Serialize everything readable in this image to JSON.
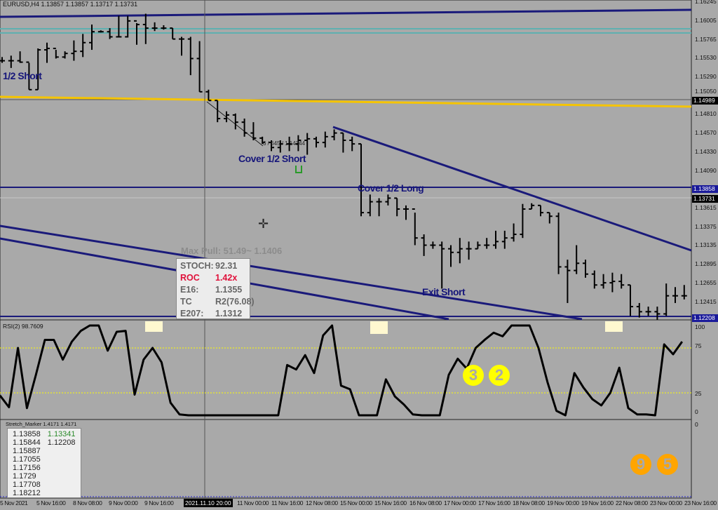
{
  "header": {
    "title": "EURUSD,H4  1.13857 1.13857 1.13717 1.13731"
  },
  "annotations": {
    "short": "1/2 Short",
    "cover_short": "Cover 1/2 Short",
    "cover_long": "Cover 1/2 Long",
    "exit_short": "Exit Short",
    "max_pull": "Max Pull: 51.49~ 1.1406",
    "measure": "6 / 645 / 1.14344"
  },
  "info_box": {
    "rows": [
      {
        "k": "STOCH:",
        "v": "92.31"
      },
      {
        "k": "ROC",
        "v": "1.42x",
        "color": "#e0103a"
      },
      {
        "k": "E16:",
        "v": "1.1355"
      },
      {
        "k": "TC",
        "v": "R2(76.08)"
      },
      {
        "k": "E207:",
        "v": "1.1312"
      }
    ]
  },
  "price_axis": {
    "ticks": [
      "1.16245",
      "1.16005",
      "1.15765",
      "1.15530",
      "1.15290",
      "1.15050",
      "1.14810",
      "1.14570",
      "1.14330",
      "1.14090",
      "1.13615",
      "1.13375",
      "1.13135",
      "1.12895",
      "1.12655",
      "1.12415"
    ],
    "tags": [
      {
        "v": "1.14989",
        "bg": "#000000"
      },
      {
        "v": "1.13858",
        "bg": "#1a1a9a"
      },
      {
        "v": "1.13731",
        "bg": "#000000"
      },
      {
        "v": "1.12208",
        "bg": "#1a1a9a"
      }
    ]
  },
  "rsi": {
    "title": "RSI(2) 98.7609",
    "ticks": [
      "100",
      "75",
      "25",
      "0"
    ]
  },
  "stretch": {
    "title": "Stretch_Marker 1.4171 1.4171",
    "col1": [
      "1.13858",
      "1.15844",
      "1.15887",
      "1.17055",
      "1.17156",
      "1.1729",
      "1.17708",
      "1.18212"
    ],
    "col2": [
      "1.13341",
      "1.12208"
    ],
    "col2_colors": [
      "#2a8a2a",
      "#222222"
    ],
    "axis_zero": "0"
  },
  "markers": {
    "yellow": [
      "3",
      "2"
    ],
    "orange": [
      "9",
      "5"
    ]
  },
  "time_axis": {
    "labels": [
      "5 Nov 2021",
      "5 Nov 16:00",
      "8 Nov 08:00",
      "9 Nov 00:00",
      "9 Nov 16:00",
      "11 Nov 00:00",
      "11 Nov 16:00",
      "12 Nov 08:00",
      "15 Nov 00:00",
      "15 Nov 16:00",
      "16 Nov 08:00",
      "17 Nov 00:00",
      "17 Nov 16:00",
      "18 Nov 08:00",
      "19 Nov 00:00",
      "19 Nov 16:00",
      "22 Nov 08:00",
      "23 Nov 00:00",
      "23 Nov 16:00"
    ],
    "cursor": "2021.11.10 20:00"
  },
  "colors": {
    "background": "#a9a9a9",
    "bars": "#000000",
    "trendline": "#1a1a7a",
    "yellow_line": "#f5c400",
    "teal": "#5fb0b0",
    "rsi_levels": "#ffff00"
  },
  "chart_data": [
    {
      "type": "ohlc",
      "symbol": "EURUSD",
      "timeframe": "H4",
      "ylim": [
        1.1218,
        1.1627
      ],
      "fields": [
        "high",
        "low",
        "close"
      ],
      "bars": [
        [
          1.15535,
          1.15461,
          1.15488
        ],
        [
          1.15553,
          1.15396,
          1.15488
        ],
        [
          1.15608,
          1.15461,
          1.1547
        ],
        [
          1.15461,
          1.15119,
          1.15119
        ],
        [
          1.15645,
          1.15119,
          1.15627
        ],
        [
          1.15719,
          1.15461,
          1.15645
        ],
        [
          1.15627,
          1.15516,
          1.15535
        ],
        [
          1.15608,
          1.15516,
          1.15581
        ],
        [
          1.15747,
          1.15488,
          1.15608
        ],
        [
          1.1583,
          1.15535,
          1.15719
        ],
        [
          1.1595,
          1.15627,
          1.15858
        ],
        [
          1.15876,
          1.15848,
          1.15858
        ],
        [
          1.15904,
          1.15765,
          1.15793
        ],
        [
          1.16061,
          1.15784,
          1.15793
        ],
        [
          1.16061,
          1.15784,
          1.15996
        ],
        [
          1.15968,
          1.15692,
          1.1595
        ],
        [
          1.16088,
          1.15701,
          1.15904
        ],
        [
          1.15978,
          1.15867,
          1.15904
        ],
        [
          1.15941,
          1.15885,
          1.15904
        ],
        [
          1.15904,
          1.15765,
          1.15765
        ],
        [
          1.15793,
          1.15553,
          1.15765
        ],
        [
          1.15793,
          1.15304,
          1.15516
        ],
        [
          1.15738,
          1.15092,
          1.15092
        ],
        [
          1.15119,
          1.14981,
          1.14981
        ],
        [
          1.14981,
          1.14704,
          1.1475
        ],
        [
          1.14842,
          1.14704,
          1.14796
        ],
        [
          1.14815,
          1.14612,
          1.14704
        ],
        [
          1.1475,
          1.14519,
          1.14566
        ],
        [
          1.14704,
          1.14473,
          1.14501
        ],
        [
          1.14519,
          1.14427,
          1.14445
        ],
        [
          1.14473,
          1.14335,
          1.14381
        ],
        [
          1.14473,
          1.14316,
          1.14427
        ],
        [
          1.14519,
          1.14335,
          1.14427
        ],
        [
          1.14538,
          1.14335,
          1.14473
        ],
        [
          1.14566,
          1.14289,
          1.14492
        ],
        [
          1.14519,
          1.14381,
          1.14445
        ],
        [
          1.14584,
          1.14381,
          1.14519
        ],
        [
          1.14612,
          1.14473,
          1.14566
        ],
        [
          1.14566,
          1.14316,
          1.14473
        ],
        [
          1.14519,
          1.14335,
          1.14427
        ],
        [
          1.14427,
          1.13504,
          1.1355
        ],
        [
          1.13781,
          1.13504,
          1.13689
        ],
        [
          1.13735,
          1.13504,
          1.13689
        ],
        [
          1.13781,
          1.13642,
          1.13735
        ],
        [
          1.13735,
          1.13504,
          1.13596
        ],
        [
          1.13642,
          1.13458,
          1.13596
        ],
        [
          1.1355,
          1.13135,
          1.13227
        ],
        [
          1.13273,
          1.12997,
          1.13135
        ],
        [
          1.13181,
          1.13089,
          1.13135
        ],
        [
          1.13181,
          1.12581,
          1.13089
        ],
        [
          1.13135,
          1.12858,
          1.13043
        ],
        [
          1.13227,
          1.12904,
          1.13089
        ],
        [
          1.13181,
          1.1295,
          1.13089
        ],
        [
          1.13181,
          1.13089,
          1.13135
        ],
        [
          1.13227,
          1.13089,
          1.13135
        ],
        [
          1.13319,
          1.13089,
          1.13181
        ],
        [
          1.13319,
          1.13089,
          1.13227
        ],
        [
          1.13412,
          1.13181,
          1.13273
        ],
        [
          1.13661,
          1.13227,
          1.13596
        ],
        [
          1.1367,
          1.13596,
          1.13642
        ],
        [
          1.13642,
          1.13504,
          1.1355
        ],
        [
          1.1355,
          1.13412,
          1.13504
        ],
        [
          1.1355,
          1.12766,
          1.12858
        ],
        [
          1.1295,
          1.12397,
          1.12812
        ],
        [
          1.13135,
          1.12766,
          1.12904
        ],
        [
          1.1295,
          1.1272,
          1.12766
        ],
        [
          1.12812,
          1.12581,
          1.12627
        ],
        [
          1.12766,
          1.12581,
          1.12655
        ],
        [
          1.12784,
          1.12535,
          1.12673
        ],
        [
          1.12766,
          1.12581,
          1.12627
        ],
        [
          1.12627,
          1.12231,
          1.12351
        ],
        [
          1.12397,
          1.12212,
          1.12286
        ],
        [
          1.12351,
          1.12231,
          1.12286
        ],
        [
          1.12351,
          1.12184,
          1.12258
        ],
        [
          1.12646,
          1.12231,
          1.12489
        ],
        [
          1.126,
          1.12397,
          1.12489
        ],
        [
          1.12627,
          1.12443,
          1.12489
        ]
      ],
      "horizontal_levels": [
        1.14989,
        1.13858,
        1.13731,
        1.12208
      ]
    },
    {
      "type": "line",
      "title": "RSI(2) 98.7609",
      "ylim": [
        0,
        100
      ],
      "levels": [
        25,
        75
      ],
      "values": [
        22,
        9,
        75,
        8,
        45,
        84,
        84,
        62,
        82,
        94,
        100,
        100,
        72,
        93,
        94,
        23,
        62,
        75,
        59,
        14,
        1,
        0,
        0,
        0,
        0,
        0,
        0,
        0,
        0,
        0,
        0,
        0,
        56,
        51,
        67,
        47,
        89,
        100,
        33,
        29,
        0,
        0,
        0,
        40,
        21,
        12,
        1,
        0,
        0,
        0,
        45,
        63,
        52,
        75,
        84,
        92,
        88,
        100,
        100,
        100,
        75,
        37,
        5,
        0,
        47,
        31,
        18,
        11,
        25,
        53,
        8,
        1,
        1,
        0,
        79,
        68,
        82
      ]
    }
  ]
}
